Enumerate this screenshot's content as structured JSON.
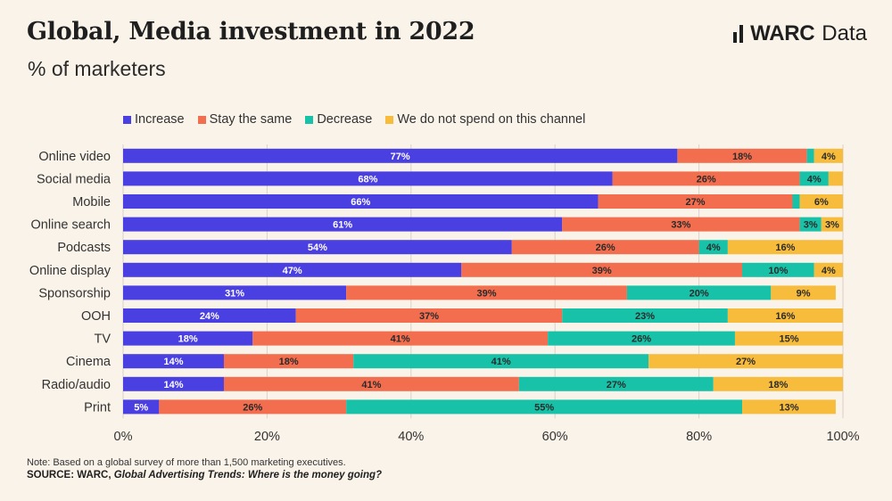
{
  "header": {
    "title": "Global, Media investment in 2022",
    "subtitle": "% of marketers"
  },
  "brand": {
    "name": "WARC",
    "suffix": "Data"
  },
  "footer": {
    "note": "Note: Based on a global survey of more than 1,500 marketing executives.",
    "source_label": "SOURCE: WARC,",
    "source_title": "Global Advertising Trends: Where is the money going?"
  },
  "colors": {
    "background": "#faf3e9",
    "grid": "#d9d2c8"
  },
  "chart_data": {
    "type": "bar",
    "orientation": "horizontal",
    "stacked": true,
    "categories": [
      "Online video",
      "Social media",
      "Mobile",
      "Online search",
      "Podcasts",
      "Online display",
      "Sponsorship",
      "OOH",
      "TV",
      "Cinema",
      "Radio/audio",
      "Print"
    ],
    "series": [
      {
        "name": "Increase",
        "color": "#4a3fe0",
        "values": [
          77,
          68,
          66,
          61,
          54,
          47,
          31,
          24,
          18,
          14,
          14,
          5
        ]
      },
      {
        "name": "Stay the same",
        "color": "#f26e4f",
        "values": [
          18,
          26,
          27,
          33,
          26,
          39,
          39,
          37,
          41,
          18,
          41,
          26
        ]
      },
      {
        "name": "Decrease",
        "color": "#17c2a8",
        "values": [
          1,
          4,
          1,
          3,
          4,
          10,
          20,
          23,
          26,
          41,
          27,
          55
        ]
      },
      {
        "name": "We do not spend on this channel",
        "color": "#f7bc3c",
        "values": [
          4,
          2,
          6,
          3,
          16,
          4,
          9,
          16,
          15,
          27,
          18,
          13
        ]
      }
    ],
    "data_labels": [
      [
        "77%",
        "18%",
        "",
        "4%"
      ],
      [
        "68%",
        "26%",
        "4%",
        ""
      ],
      [
        "66%",
        "27%",
        "",
        "6%"
      ],
      [
        "61%",
        "33%",
        "3%",
        "3%"
      ],
      [
        "54%",
        "26%",
        "4%",
        "16%"
      ],
      [
        "47%",
        "39%",
        "10%",
        "4%"
      ],
      [
        "31%",
        "39%",
        "20%",
        "9%"
      ],
      [
        "24%",
        "37%",
        "23%",
        "16%"
      ],
      [
        "18%",
        "41%",
        "26%",
        "15%"
      ],
      [
        "14%",
        "18%",
        "41%",
        "27%"
      ],
      [
        "14%",
        "41%",
        "27%",
        "18%"
      ],
      [
        "5%",
        "26%",
        "55%",
        "13%"
      ]
    ],
    "xlim": [
      0,
      100
    ],
    "xticks": [
      "0%",
      "20%",
      "40%",
      "60%",
      "80%",
      "100%"
    ],
    "grid": true,
    "legend_position": "top-left"
  }
}
